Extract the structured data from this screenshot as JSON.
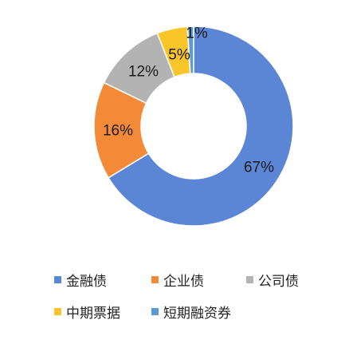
{
  "chart_data": {
    "type": "pie",
    "variant": "donut",
    "title": "",
    "categories": [
      "金融债",
      "企业债",
      "公司债",
      "中期票据",
      "短期融资券"
    ],
    "values": [
      67,
      16,
      12,
      5,
      1
    ],
    "labels": [
      "67%",
      "16%",
      "12%",
      "5%",
      "1%"
    ],
    "colors": [
      "#5b86d6",
      "#f28a37",
      "#b3b3b3",
      "#f9c629",
      "#5b9bd5"
    ],
    "legend_position": "bottom"
  }
}
